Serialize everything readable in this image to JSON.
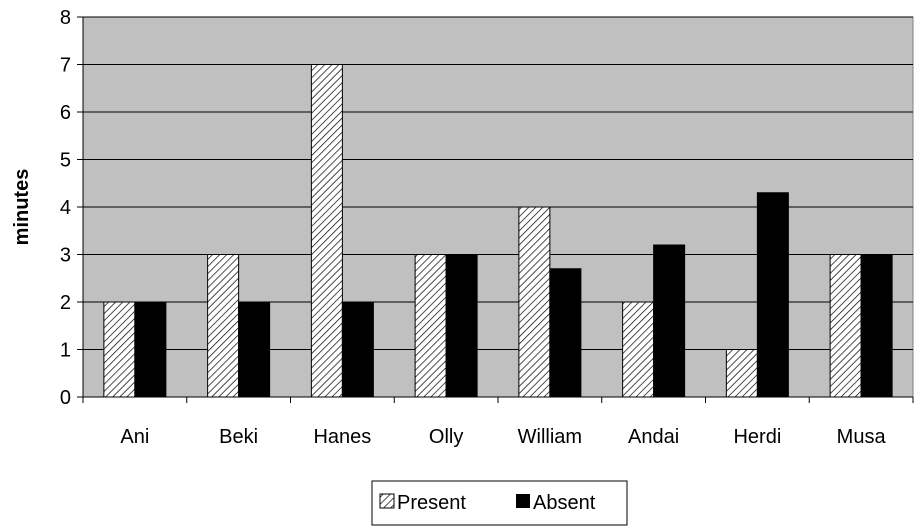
{
  "chart_data": {
    "type": "bar",
    "title": "",
    "xlabel": "",
    "ylabel": "minutes",
    "ylim": [
      0,
      8
    ],
    "yticks": [
      "0",
      "1",
      "2",
      "3",
      "4",
      "5",
      "6",
      "7",
      "8"
    ],
    "categories": [
      "Ani",
      "Beki",
      "Hanes",
      "Olly",
      "William",
      "Andai",
      "Herdi",
      "Musa"
    ],
    "series": [
      {
        "name": "Present",
        "values": [
          2,
          3,
          7,
          3,
          4,
          2,
          1,
          3
        ],
        "fill": "hatch"
      },
      {
        "name": "Absent",
        "values": [
          2,
          2,
          2,
          3,
          2.7,
          3.2,
          4.3,
          3
        ],
        "fill": "#000000"
      }
    ],
    "grid": true,
    "plot_background": "#c0c0c0",
    "legend_position": "bottom"
  }
}
